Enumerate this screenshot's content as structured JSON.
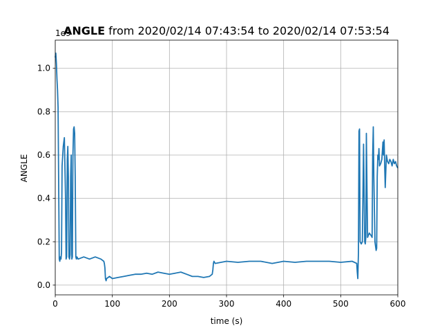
{
  "chart_data": {
    "type": "line",
    "title_bold": "ANGLE",
    "title_rest": " from 2020/02/14 07:43:54 to 2020/02/14 07:53:54",
    "xlabel": "time (s)",
    "ylabel": "ANGLE",
    "y_offset_text": "1e9",
    "xlim": [
      0,
      600
    ],
    "ylim": [
      -0.045,
      1.13
    ],
    "y_scale_factor": 1000000000,
    "xticks": [
      0,
      100,
      200,
      300,
      400,
      500,
      600
    ],
    "xtick_labels": [
      "0",
      "100",
      "200",
      "300",
      "400",
      "500",
      "600"
    ],
    "yticks": [
      0.0,
      0.2,
      0.4,
      0.6,
      0.8,
      1.0
    ],
    "ytick_labels": [
      "0.0",
      "0.2",
      "0.4",
      "0.6",
      "0.8",
      "1.0"
    ],
    "grid": true,
    "series_color": "#1f77b4",
    "series": [
      {
        "x": [
          0,
          1,
          2,
          3,
          4,
          5,
          6,
          7,
          8,
          9,
          10,
          11,
          12,
          14,
          16,
          18,
          19,
          20,
          21,
          22,
          23,
          24,
          25,
          26,
          27,
          28,
          29,
          30,
          31,
          32,
          33,
          34,
          35,
          36,
          37,
          38,
          40,
          50,
          60,
          70,
          80,
          85,
          86,
          87,
          88,
          89,
          90,
          95,
          100,
          110,
          120,
          130,
          140,
          150,
          160,
          170,
          180,
          190,
          200,
          210,
          220,
          230,
          240,
          250,
          260,
          270,
          275,
          276,
          277,
          278,
          280,
          300,
          320,
          340,
          360,
          380,
          400,
          420,
          440,
          460,
          480,
          500,
          520,
          528,
          529,
          530,
          531,
          532,
          533,
          534,
          536,
          538,
          540,
          542,
          543,
          544,
          545,
          547,
          550,
          553,
          555,
          556,
          557,
          558,
          560,
          562,
          563,
          564,
          565,
          566,
          567,
          568,
          570,
          572,
          573,
          574,
          575,
          576,
          577,
          578,
          580,
          582,
          584,
          586,
          588,
          590,
          592,
          594,
          596,
          598,
          600
        ],
        "y": [
          1.05,
          1.07,
          1.02,
          0.95,
          0.9,
          0.82,
          0.45,
          0.12,
          0.11,
          0.13,
          0.12,
          0.15,
          0.55,
          0.64,
          0.68,
          0.4,
          0.12,
          0.13,
          0.58,
          0.64,
          0.5,
          0.13,
          0.12,
          0.14,
          0.5,
          0.6,
          0.12,
          0.13,
          0.6,
          0.72,
          0.73,
          0.7,
          0.5,
          0.13,
          0.12,
          0.13,
          0.12,
          0.13,
          0.12,
          0.13,
          0.12,
          0.11,
          0.1,
          0.08,
          0.03,
          0.02,
          0.03,
          0.04,
          0.03,
          0.035,
          0.04,
          0.045,
          0.05,
          0.05,
          0.055,
          0.05,
          0.06,
          0.055,
          0.05,
          0.055,
          0.06,
          0.05,
          0.04,
          0.04,
          0.035,
          0.04,
          0.05,
          0.07,
          0.1,
          0.11,
          0.1,
          0.11,
          0.105,
          0.11,
          0.11,
          0.1,
          0.11,
          0.105,
          0.11,
          0.11,
          0.11,
          0.105,
          0.11,
          0.1,
          0.06,
          0.03,
          0.15,
          0.71,
          0.72,
          0.2,
          0.19,
          0.2,
          0.65,
          0.2,
          0.19,
          0.22,
          0.7,
          0.22,
          0.24,
          0.23,
          0.22,
          0.6,
          0.73,
          0.5,
          0.2,
          0.16,
          0.17,
          0.5,
          0.6,
          0.58,
          0.63,
          0.55,
          0.56,
          0.58,
          0.62,
          0.66,
          0.6,
          0.67,
          0.55,
          0.45,
          0.6,
          0.57,
          0.56,
          0.58,
          0.57,
          0.55,
          0.58,
          0.56,
          0.57,
          0.55,
          0.54
        ]
      }
    ]
  }
}
